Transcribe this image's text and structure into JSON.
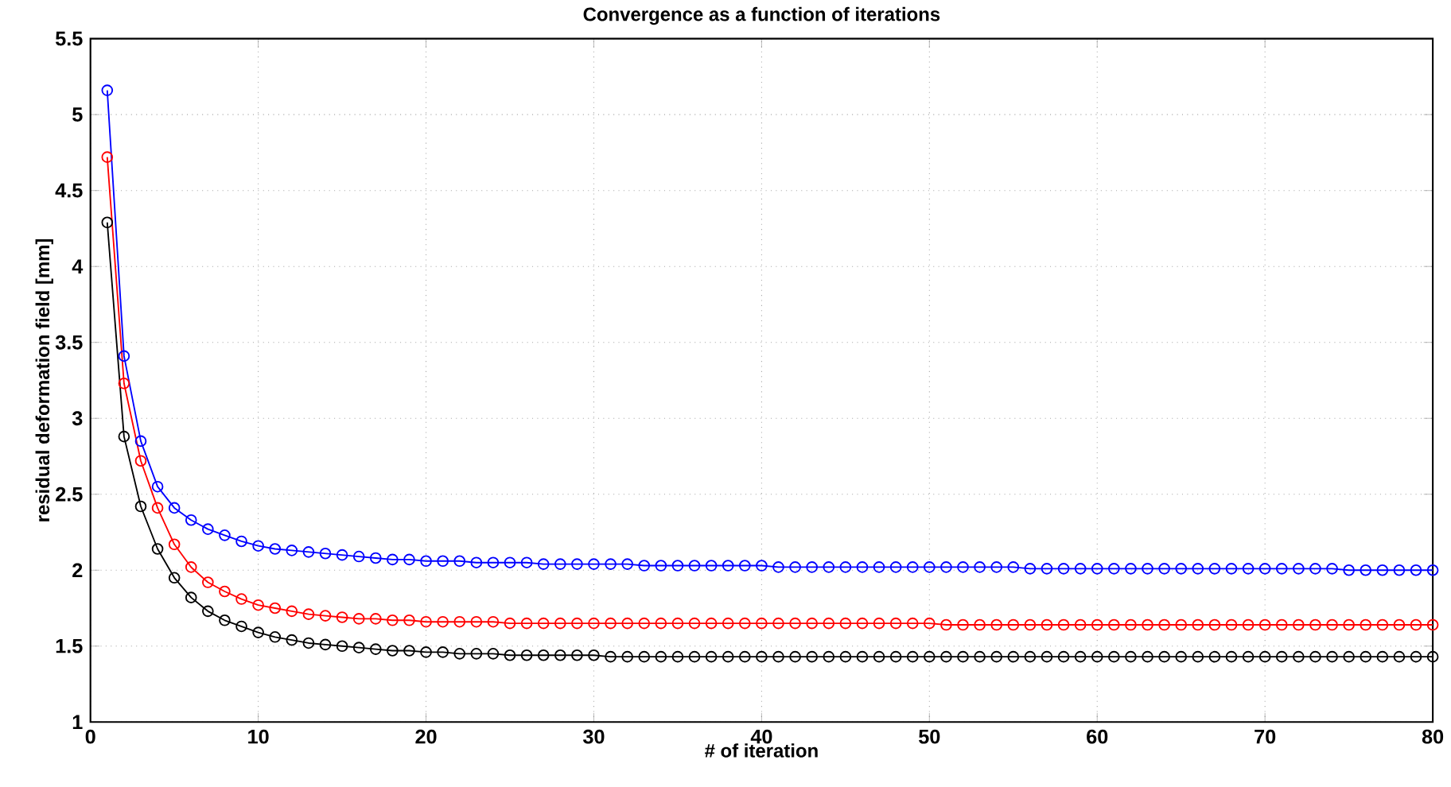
{
  "chart_data": {
    "type": "line",
    "title": "Convergence as a function of iterations",
    "xlabel": "# of iteration",
    "ylabel": "residual deformation field [mm]",
    "x": [
      1,
      2,
      3,
      4,
      5,
      6,
      7,
      8,
      9,
      10,
      11,
      12,
      13,
      14,
      15,
      16,
      17,
      18,
      19,
      20,
      21,
      22,
      23,
      24,
      25,
      26,
      27,
      28,
      29,
      30,
      31,
      32,
      33,
      34,
      35,
      36,
      37,
      38,
      39,
      40,
      41,
      42,
      43,
      44,
      45,
      46,
      47,
      48,
      49,
      50,
      51,
      52,
      53,
      54,
      55,
      56,
      57,
      58,
      59,
      60,
      61,
      62,
      63,
      64,
      65,
      66,
      67,
      68,
      69,
      70,
      71,
      72,
      73,
      74,
      75,
      76,
      77,
      78,
      79,
      80
    ],
    "series": [
      {
        "color": "#0000ff",
        "values": [
          5.16,
          3.41,
          2.85,
          2.55,
          2.41,
          2.33,
          2.27,
          2.23,
          2.19,
          2.16,
          2.14,
          2.13,
          2.12,
          2.11,
          2.1,
          2.09,
          2.08,
          2.07,
          2.07,
          2.06,
          2.06,
          2.06,
          2.05,
          2.05,
          2.05,
          2.05,
          2.04,
          2.04,
          2.04,
          2.04,
          2.04,
          2.04,
          2.03,
          2.03,
          2.03,
          2.03,
          2.03,
          2.03,
          2.03,
          2.03,
          2.02,
          2.02,
          2.02,
          2.02,
          2.02,
          2.02,
          2.02,
          2.02,
          2.02,
          2.02,
          2.02,
          2.02,
          2.02,
          2.02,
          2.02,
          2.01,
          2.01,
          2.01,
          2.01,
          2.01,
          2.01,
          2.01,
          2.01,
          2.01,
          2.01,
          2.01,
          2.01,
          2.01,
          2.01,
          2.01,
          2.01,
          2.01,
          2.01,
          2.01,
          2.0,
          2.0,
          2.0,
          2.0,
          2.0,
          2.0
        ]
      },
      {
        "color": "#ff0000",
        "values": [
          4.72,
          3.23,
          2.72,
          2.41,
          2.17,
          2.02,
          1.92,
          1.86,
          1.81,
          1.77,
          1.75,
          1.73,
          1.71,
          1.7,
          1.69,
          1.68,
          1.68,
          1.67,
          1.67,
          1.66,
          1.66,
          1.66,
          1.66,
          1.66,
          1.65,
          1.65,
          1.65,
          1.65,
          1.65,
          1.65,
          1.65,
          1.65,
          1.65,
          1.65,
          1.65,
          1.65,
          1.65,
          1.65,
          1.65,
          1.65,
          1.65,
          1.65,
          1.65,
          1.65,
          1.65,
          1.65,
          1.65,
          1.65,
          1.65,
          1.65,
          1.64,
          1.64,
          1.64,
          1.64,
          1.64,
          1.64,
          1.64,
          1.64,
          1.64,
          1.64,
          1.64,
          1.64,
          1.64,
          1.64,
          1.64,
          1.64,
          1.64,
          1.64,
          1.64,
          1.64,
          1.64,
          1.64,
          1.64,
          1.64,
          1.64,
          1.64,
          1.64,
          1.64,
          1.64,
          1.64
        ]
      },
      {
        "color": "#000000",
        "values": [
          4.29,
          2.88,
          2.42,
          2.14,
          1.95,
          1.82,
          1.73,
          1.67,
          1.63,
          1.59,
          1.56,
          1.54,
          1.52,
          1.51,
          1.5,
          1.49,
          1.48,
          1.47,
          1.47,
          1.46,
          1.46,
          1.45,
          1.45,
          1.45,
          1.44,
          1.44,
          1.44,
          1.44,
          1.44,
          1.44,
          1.43,
          1.43,
          1.43,
          1.43,
          1.43,
          1.43,
          1.43,
          1.43,
          1.43,
          1.43,
          1.43,
          1.43,
          1.43,
          1.43,
          1.43,
          1.43,
          1.43,
          1.43,
          1.43,
          1.43,
          1.43,
          1.43,
          1.43,
          1.43,
          1.43,
          1.43,
          1.43,
          1.43,
          1.43,
          1.43,
          1.43,
          1.43,
          1.43,
          1.43,
          1.43,
          1.43,
          1.43,
          1.43,
          1.43,
          1.43,
          1.43,
          1.43,
          1.43,
          1.43,
          1.43,
          1.43,
          1.43,
          1.43,
          1.43,
          1.43
        ]
      }
    ],
    "xlim": [
      0,
      80
    ],
    "xticks": [
      0,
      10,
      20,
      30,
      40,
      50,
      60,
      70,
      80
    ],
    "ylim": [
      1,
      5.5
    ],
    "yticks": [
      1,
      1.5,
      2,
      2.5,
      3,
      3.5,
      4,
      4.5,
      5,
      5.5
    ],
    "grid": true,
    "marker": "circle",
    "line_style": "solid"
  }
}
